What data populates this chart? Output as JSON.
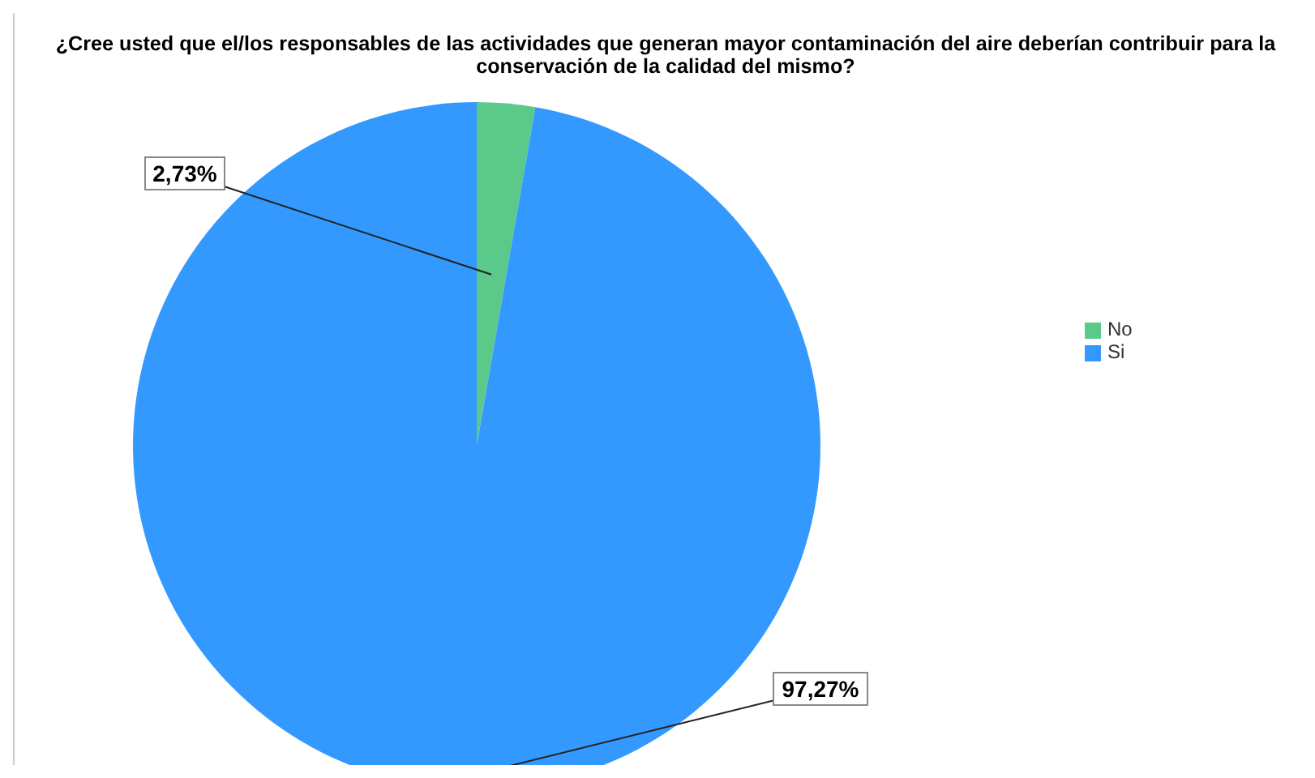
{
  "chart_data": {
    "type": "pie",
    "title": "¿Cree usted que el/los responsables de las actividades que generan mayor contaminación del aire deberían contribuir para la conservación de la calidad del mismo?",
    "categories": [
      "No",
      "Si"
    ],
    "values": [
      2.73,
      97.27
    ],
    "colors": [
      "#5bc98a",
      "#3399ff"
    ],
    "value_labels": [
      "2,73%",
      "97,27%"
    ],
    "legend": "right"
  }
}
